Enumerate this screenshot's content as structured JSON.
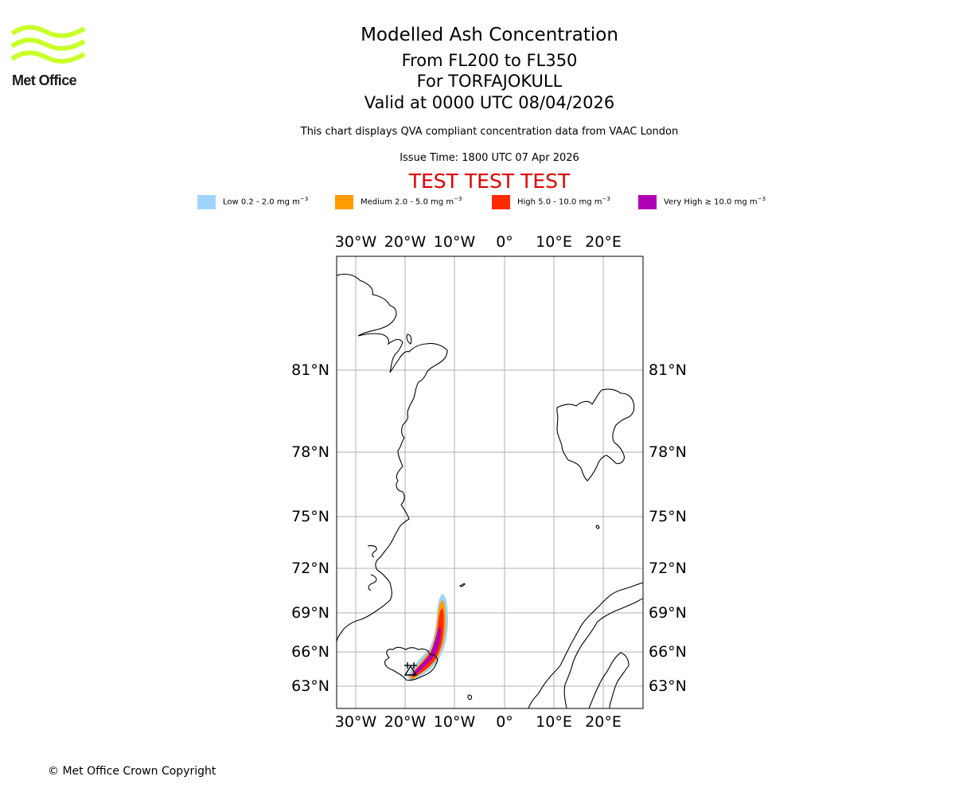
{
  "logo": {
    "text": "Met Office",
    "color": "#c8ff2b"
  },
  "header": {
    "title": "Modelled Ash Concentration",
    "levels": "From FL200 to FL350",
    "volcano": "For TORFAJOKULL",
    "valid": "Valid at 0000 UTC 08/04/2026",
    "source": "This chart displays QVA compliant concentration data from VAAC London",
    "issue": "Issue Time: 1800 UTC 07 Apr 2026",
    "test_banner": "TEST TEST TEST",
    "test_color": "#e00000"
  },
  "legend": [
    {
      "label": "Low 0.2 - 2.0 mg m",
      "unit_exp": "−3",
      "color": "#9fd4fb"
    },
    {
      "label": "Medium 2.0 - 5.0 mg m",
      "unit_exp": "−3",
      "color": "#ff9c00"
    },
    {
      "label": "High 5.0 - 10.0 mg m",
      "unit_exp": "−3",
      "color": "#ff2a00"
    },
    {
      "label": "Very High  ≥  10.0 mg m",
      "unit_exp": "−3",
      "color": "#b000b5"
    }
  ],
  "map": {
    "lon_labels": [
      "30°W",
      "20°W",
      "10°W",
      "0°",
      "10°E",
      "20°E"
    ],
    "lat_labels": [
      "81°N",
      "78°N",
      "75°N",
      "72°N",
      "69°N",
      "66°N",
      "63°N"
    ],
    "source_marker": "TORFAJOKULL",
    "grid": true
  },
  "footer": {
    "copyright": "© Met Office Crown Copyright"
  }
}
